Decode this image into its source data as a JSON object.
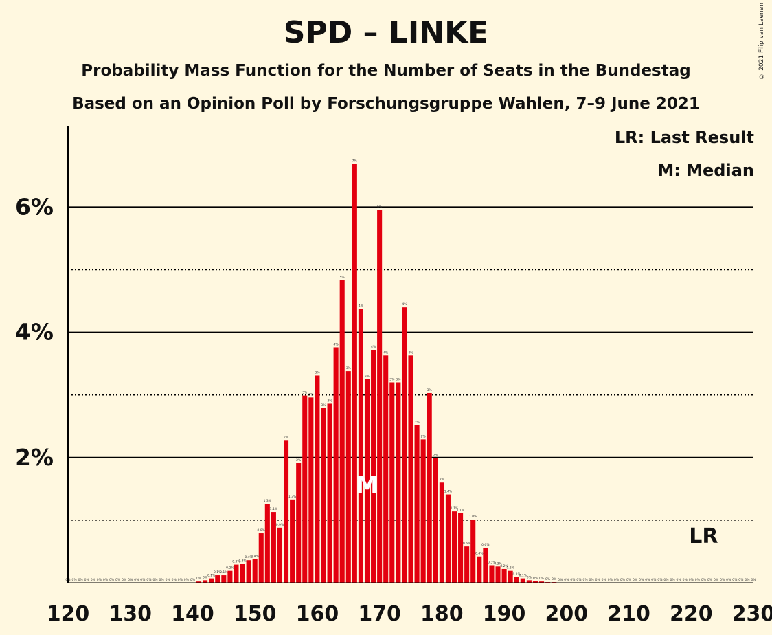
{
  "chart_data": {
    "type": "bar",
    "title": "SPD – LINKE",
    "subtitle": "Probability Mass Function for the Number of Seats in the Bundestag",
    "subtitle2": "Based on an Opinion Poll by Forschungsgruppe Wahlen, 7–9 June 2021",
    "copyright": "© 2021 Filip van Laenen",
    "legend": [
      "LR: Last Result",
      "M: Median"
    ],
    "last_result_label": "LR",
    "last_result_seat": 222,
    "median_label": "M",
    "median_seat": 168,
    "bar_color": "#E3000F",
    "xlim": [
      120,
      230
    ],
    "ylim": [
      0,
      0.073
    ],
    "x_ticks": [
      120,
      130,
      140,
      150,
      160,
      170,
      180,
      190,
      200,
      210,
      220,
      230
    ],
    "y_ticks_labeled": [
      {
        "value": 0.02,
        "label": "2%"
      },
      {
        "value": 0.04,
        "label": "4%"
      },
      {
        "value": 0.06,
        "label": "6%"
      }
    ],
    "y_gridlines_dotted": [
      0.01,
      0.03,
      0.05
    ],
    "x": [
      120,
      121,
      122,
      123,
      124,
      125,
      126,
      127,
      128,
      129,
      130,
      131,
      132,
      133,
      134,
      135,
      136,
      137,
      138,
      139,
      140,
      141,
      142,
      143,
      144,
      145,
      146,
      147,
      148,
      149,
      150,
      151,
      152,
      153,
      154,
      155,
      156,
      157,
      158,
      159,
      160,
      161,
      162,
      163,
      164,
      165,
      166,
      167,
      168,
      169,
      170,
      171,
      172,
      173,
      174,
      175,
      176,
      177,
      178,
      179,
      180,
      181,
      182,
      183,
      184,
      185,
      186,
      187,
      188,
      189,
      190,
      191,
      192,
      193,
      194,
      195,
      196,
      197,
      198,
      199,
      200,
      201,
      202,
      203,
      204,
      205,
      206,
      207,
      208,
      209,
      210,
      211,
      212,
      213,
      214,
      215,
      216,
      217,
      218,
      219,
      220,
      221,
      222,
      223,
      224,
      225,
      226,
      227,
      228,
      229,
      230
    ],
    "values": [
      0,
      0,
      0,
      0,
      0,
      0,
      0,
      0,
      0,
      0,
      0,
      0,
      0,
      0,
      0,
      0,
      0,
      0,
      0,
      0,
      0,
      0.0002,
      0.0004,
      0.0007,
      0.0012,
      0.0012,
      0.0019,
      0.0029,
      0.003,
      0.0036,
      0.0038,
      0.0079,
      0.0126,
      0.0113,
      0.0088,
      0.0228,
      0.0133,
      0.0191,
      0.0299,
      0.0296,
      0.0331,
      0.0279,
      0.0286,
      0.0376,
      0.0483,
      0.0338,
      0.0669,
      0.0438,
      0.0325,
      0.0372,
      0.0596,
      0.0363,
      0.032,
      0.032,
      0.044,
      0.0363,
      0.0252,
      0.0229,
      0.0303,
      0.0199,
      0.016,
      0.0141,
      0.0114,
      0.0111,
      0.0058,
      0.0101,
      0.0042,
      0.0056,
      0.0028,
      0.0026,
      0.0022,
      0.0019,
      0.0009,
      0.0007,
      0.0004,
      0.0003,
      0.0002,
      0.0001,
      0.0001,
      0,
      0,
      0,
      0,
      0,
      0,
      0,
      0,
      0,
      0,
      0,
      0,
      0,
      0,
      0,
      0,
      0,
      0,
      0,
      0,
      0,
      0,
      0,
      0,
      0,
      0,
      0,
      0,
      0,
      0,
      0,
      0
    ],
    "value_labels": [
      "0%",
      "0%",
      "0%",
      "0%",
      "0%",
      "0%",
      "0%",
      "0%",
      "0%",
      "0%",
      "0%",
      "0%",
      "0%",
      "0%",
      "0%",
      "0%",
      "0%",
      "0%",
      "0%",
      "0%",
      "0%",
      "0%",
      "0%",
      "0.1%",
      "0.1%",
      "0.1%",
      "0.2%",
      "0.3%",
      "0.3%",
      "0.4%",
      "0.4%",
      "0.8%",
      "1.3%",
      "1.1%",
      "0.9%",
      "2%",
      "1.3%",
      "2%",
      "3%",
      "3%",
      "3%",
      "3%",
      "3%",
      "4%",
      "5%",
      "3%",
      "7%",
      "4%",
      "3%",
      "4%",
      "6%",
      "4%",
      "3%",
      "3%",
      "4%",
      "4%",
      "3%",
      "2%",
      "3%",
      "2%",
      "2%",
      "1.4%",
      "1.1%",
      "1.1%",
      "0.6%",
      "1.0%",
      "0.4%",
      "0.6%",
      "0.3%",
      "0.3%",
      "0.2%",
      "0.2%",
      "0.1%",
      "0.1%",
      "0%",
      "0%",
      "0%",
      "0%",
      "0%",
      "0%",
      "0%",
      "0%",
      "0%",
      "0%",
      "0%",
      "0%",
      "0%",
      "0%",
      "0%",
      "0%",
      "0%",
      "0%",
      "0%",
      "0%",
      "0%",
      "0%",
      "0%",
      "0%",
      "0%",
      "0%",
      "0%",
      "0%",
      "0%",
      "0%",
      "0%",
      "0%",
      "0%",
      "0%",
      "0%",
      "0%",
      "0%"
    ]
  }
}
